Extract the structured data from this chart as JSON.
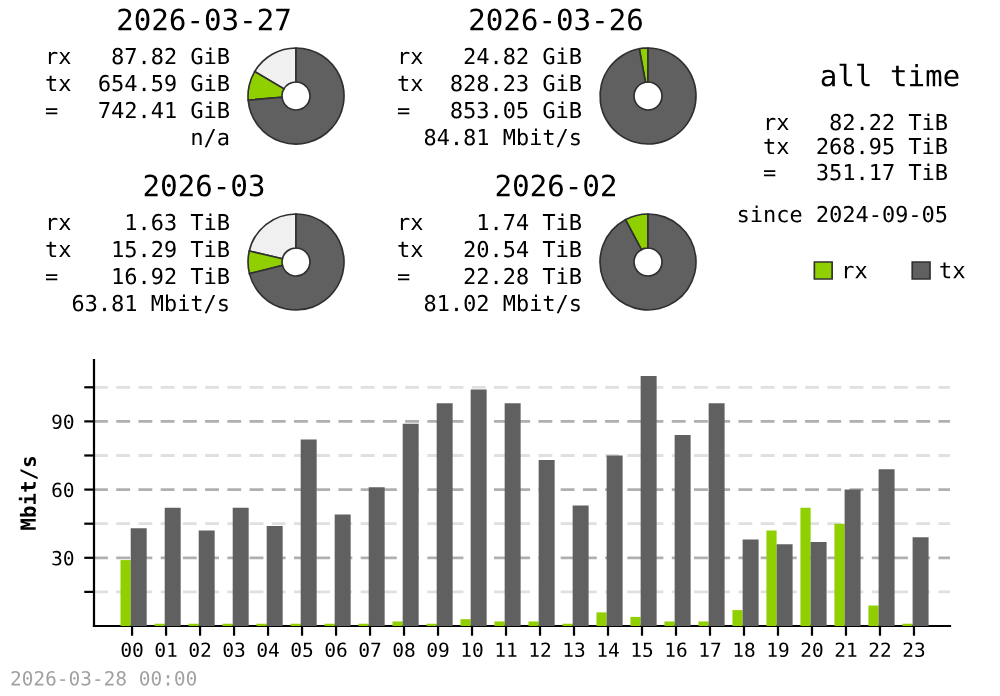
{
  "chart_data": [
    {
      "type": "donut",
      "title": "2026-03-27",
      "categories": [
        null,
        "rx",
        "tx"
      ],
      "values": [
        16.5,
        9.9,
        73.6
      ],
      "colors": [
        "#f0f0f0",
        "#90d000",
        "#606060"
      ],
      "legend": "right",
      "annotations": [
        "rx   87.82 GiB",
        "tx  654.59 GiB",
        "=   742.41 GiB",
        "n/a"
      ]
    },
    {
      "type": "donut",
      "title": "2026-03-26",
      "categories": [
        null,
        null
      ],
      "values": [
        2.9,
        97.1
      ],
      "colors": [
        "#90d000",
        "#606060"
      ],
      "annotations": [
        "rx   24.82 GiB",
        "tx  828.23 GiB",
        "=   853.05 GiB",
        "84.81 Mbit/s"
      ]
    },
    {
      "type": "other",
      "title": "all time",
      "annotations": [
        "rx   82.22 TiB",
        "tx  268.95 TiB",
        "=   351.17 TiB",
        "since 2024-09-05"
      ]
    },
    {
      "type": "donut",
      "title": "2026-03",
      "categories": [
        null,
        null,
        null
      ],
      "values": [
        21.3,
        7.6,
        71.1
      ],
      "colors": [
        "#f0f0f0",
        "#90d000",
        "#606060"
      ],
      "annotations": [
        "rx    1.63 TiB",
        "tx   15.29 TiB",
        "=    16.92 TiB",
        "63.81 Mbit/s"
      ]
    },
    {
      "type": "donut",
      "title": "2026-02",
      "categories": [
        null,
        null
      ],
      "values": [
        7.8,
        92.2
      ],
      "colors": [
        "#90d000",
        "#606060"
      ],
      "annotations": [
        "rx    1.74 TiB",
        "tx   20.54 TiB",
        "=    22.28 TiB",
        "81.02 Mbit/s"
      ]
    },
    {
      "type": "bar",
      "ylabel": "Mbit/s",
      "categories": [
        "00",
        "01",
        "02",
        "03",
        "04",
        "05",
        "06",
        "07",
        "08",
        "09",
        "10",
        "11",
        "12",
        "13",
        "14",
        "15",
        "16",
        "17",
        "18",
        "19",
        "20",
        "21",
        "22",
        "23"
      ],
      "series": [
        {
          "color": "#90d000",
          "values": [
            29,
            1,
            1,
            1,
            1,
            1,
            1,
            1,
            2,
            1,
            3,
            2,
            2,
            1,
            6,
            4,
            2,
            2,
            7,
            42,
            52,
            45,
            9,
            1
          ]
        },
        {
          "color": "#606060",
          "values": [
            43,
            52,
            42,
            52,
            44,
            82,
            49,
            61,
            89,
            98,
            104,
            98,
            73,
            53,
            75,
            110,
            84,
            98,
            38,
            36,
            37,
            60,
            69,
            39
          ]
        }
      ],
      "ylim": [
        0,
        117
      ],
      "yticks": [
        {
          "value": 15,
          "label": null
        },
        30,
        {
          "value": 45,
          "label": null
        },
        60,
        {
          "value": 75,
          "label": null
        },
        90,
        {
          "value": 105,
          "label": null
        }
      ],
      "grid": "y",
      "annotations": [
        "2026-03-28 00:00"
      ]
    }
  ]
}
